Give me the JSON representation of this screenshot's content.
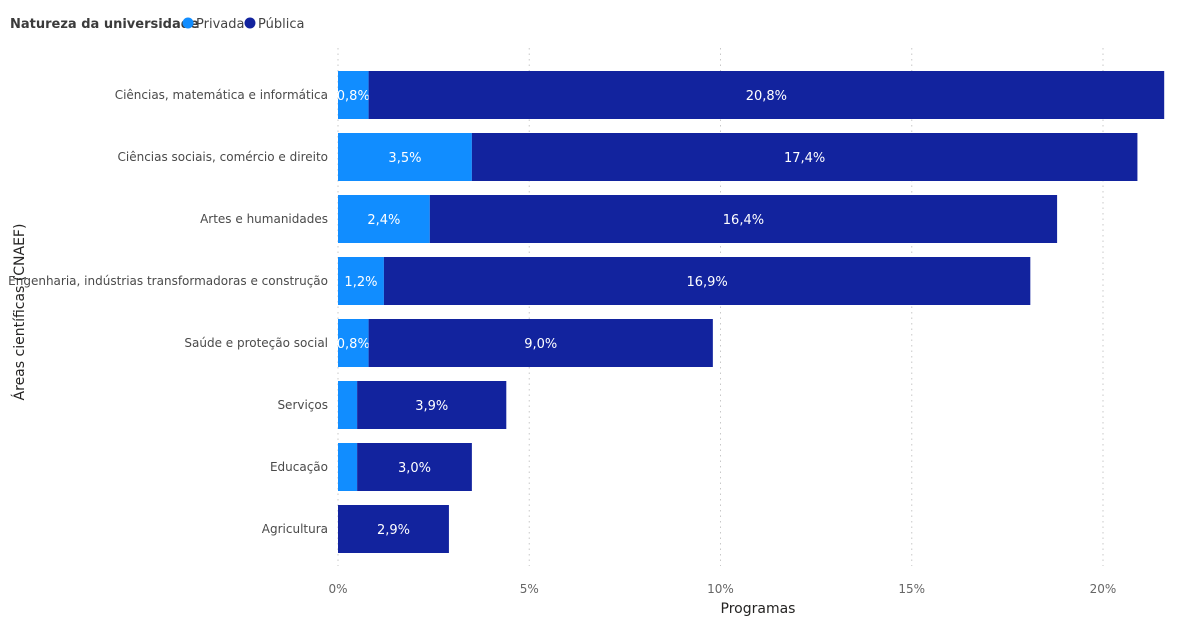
{
  "chart_data": {
    "type": "bar",
    "orientation": "horizontal",
    "stacked": true,
    "legend": {
      "title": "Natureza da universidade",
      "placement": "top-left"
    },
    "categories": [
      "Ciências, matemática e informática",
      "Ciências sociais, comércio e direito",
      "Artes e humanidades",
      "Engenharia, indústrias transformadoras e construção",
      "Saúde e proteção social",
      "Serviços",
      "Educação",
      "Agricultura"
    ],
    "series": [
      {
        "name": "Privada",
        "color": "#118dff",
        "values": [
          0.8,
          3.5,
          2.4,
          1.2,
          0.8,
          0.5,
          0.5,
          0
        ],
        "labels": [
          "0,8%",
          "3,5%",
          "2,4%",
          "1,2%",
          "0,8%",
          "",
          "",
          ""
        ]
      },
      {
        "name": "Pública",
        "color": "#12239e",
        "values": [
          20.8,
          17.4,
          16.4,
          16.9,
          9.0,
          3.9,
          3.0,
          2.9
        ],
        "labels": [
          "20,8%",
          "17,4%",
          "16,4%",
          "16,9%",
          "9,0%",
          "3,9%",
          "3,0%",
          "2,9%"
        ]
      }
    ],
    "xlabel": "Programas",
    "ylabel": "Áreas científicas (CNAEF)",
    "xlim": [
      0,
      22
    ],
    "xticks": [
      0,
      5,
      10,
      15,
      20
    ],
    "xtick_labels": [
      "0%",
      "5%",
      "10%",
      "15%",
      "20%"
    ],
    "grid": "vertical-dotted"
  }
}
